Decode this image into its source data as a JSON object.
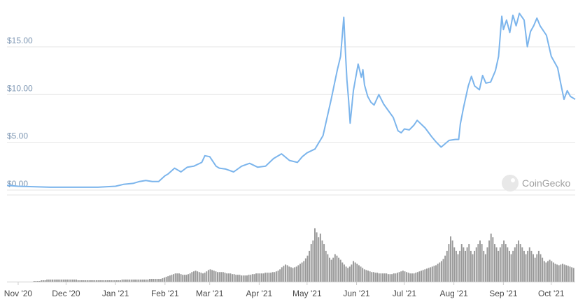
{
  "chart_data": {
    "type": "line",
    "watermark": "CoinGecko",
    "y_ticks": [
      0,
      5,
      10,
      15
    ],
    "y_tick_labels": [
      "$0.00",
      "$5.00",
      "$10.00",
      "$15.00"
    ],
    "x_tick_labels": [
      "Nov '20",
      "Dec '20",
      "Jan '21",
      "Feb '21",
      "Mar '21",
      "Apr '21",
      "May '21",
      "Jun '21",
      "Jul '21",
      "Aug '21",
      "Sep '21",
      "Oct '21"
    ],
    "x_tick_days": [
      0,
      30,
      61,
      92,
      120,
      151,
      181,
      212,
      242,
      273,
      304,
      334
    ],
    "price_ylim": [
      0,
      18.8
    ],
    "price_series": {
      "name": "Price",
      "color": "#7cb5ec",
      "days": [
        -7,
        0,
        20,
        30,
        50,
        61,
        66,
        72,
        76,
        80,
        84,
        88,
        92,
        94,
        96,
        98,
        102,
        106,
        110,
        115,
        117,
        120,
        124,
        126,
        130,
        135,
        140,
        145,
        150,
        155,
        160,
        165,
        170,
        175,
        178,
        181,
        186,
        191,
        196,
        200,
        202,
        204,
        205,
        206,
        207,
        208,
        210,
        213,
        215,
        216,
        217,
        219,
        221,
        223,
        226,
        229,
        232,
        235,
        238,
        240,
        242,
        245,
        248,
        250,
        255,
        259,
        262,
        265,
        270,
        274,
        276,
        277,
        279,
        282,
        284,
        286,
        289,
        291,
        293,
        296,
        299,
        301,
        303,
        304,
        306,
        308,
        310,
        312,
        314,
        317,
        319,
        321,
        323,
        325,
        327,
        331,
        334,
        338,
        340,
        342,
        344,
        346,
        349
      ],
      "values": [
        0.5,
        0.4,
        0.3,
        0.3,
        0.3,
        0.4,
        0.6,
        0.7,
        0.9,
        1.0,
        0.9,
        0.9,
        1.5,
        1.7,
        2.0,
        2.3,
        1.9,
        2.4,
        2.5,
        2.9,
        3.6,
        3.5,
        2.5,
        2.3,
        2.2,
        1.9,
        2.5,
        2.8,
        2.4,
        2.5,
        3.3,
        3.8,
        3.1,
        2.9,
        3.5,
        3.9,
        4.3,
        5.7,
        9.4,
        12.6,
        14.0,
        18.1,
        14.5,
        11.5,
        9.5,
        7.0,
        10.4,
        13.2,
        11.8,
        12.6,
        11.0,
        9.8,
        9.2,
        8.9,
        10.0,
        9.0,
        8.3,
        7.6,
        6.2,
        6.0,
        6.4,
        6.3,
        6.8,
        7.3,
        6.5,
        5.6,
        5.0,
        4.5,
        5.2,
        5.3,
        5.3,
        6.9,
        8.6,
        10.9,
        11.9,
        10.9,
        10.5,
        12.0,
        11.2,
        11.3,
        12.5,
        14.0,
        18.2,
        16.8,
        17.8,
        16.5,
        18.3,
        17.2,
        18.5,
        17.8,
        15.0,
        16.6,
        17.2,
        18.0,
        17.2,
        16.2,
        14.0,
        12.8,
        11.1,
        9.5,
        10.4,
        9.8,
        9.5
      ],
      "line_color": "#7cb5ec"
    },
    "volume_series": {
      "name": "Volume",
      "color": "#999999",
      "start_day": 10,
      "end_day": 348,
      "volume_ylim": [
        0,
        100
      ],
      "values": [
        1,
        1,
        1,
        1,
        2,
        2,
        2,
        3,
        3,
        3,
        3,
        3,
        3,
        3,
        3,
        3,
        3,
        3,
        3,
        3,
        3,
        3,
        3,
        3,
        2,
        2,
        2,
        2,
        2,
        2,
        2,
        2,
        2,
        2,
        2,
        2,
        2,
        2,
        2,
        2,
        2,
        2,
        2,
        2,
        2,
        2,
        2,
        2,
        3,
        3,
        3,
        3,
        3,
        3,
        3,
        3,
        3,
        3,
        3,
        3,
        3,
        3,
        3,
        4,
        4,
        4,
        4,
        4,
        4,
        4,
        5,
        6,
        7,
        8,
        9,
        10,
        11,
        12,
        12,
        12,
        11,
        10,
        10,
        10,
        11,
        12,
        14,
        15,
        16,
        15,
        14,
        13,
        12,
        13,
        15,
        17,
        18,
        17,
        16,
        15,
        14,
        14,
        14,
        14,
        13,
        12,
        12,
        12,
        11,
        11,
        10,
        10,
        10,
        9,
        9,
        9,
        9,
        10,
        10,
        11,
        11,
        12,
        12,
        12,
        12,
        12,
        13,
        13,
        13,
        13,
        14,
        14,
        15,
        16,
        18,
        21,
        23,
        25,
        24,
        22,
        21,
        20,
        21,
        22,
        24,
        26,
        28,
        30,
        34,
        38,
        45,
        55,
        60,
        78,
        72,
        65,
        70,
        60,
        55,
        45,
        40,
        35,
        32,
        35,
        40,
        38,
        35,
        32,
        28,
        25,
        22,
        20,
        22,
        25,
        30,
        28,
        26,
        24,
        22,
        20,
        18,
        17,
        16,
        15,
        14,
        14,
        13,
        13,
        12,
        12,
        12,
        12,
        12,
        11,
        11,
        11,
        12,
        12,
        13,
        14,
        15,
        16,
        15,
        14,
        13,
        12,
        12,
        12,
        13,
        14,
        15,
        16,
        17,
        18,
        19,
        20,
        21,
        22,
        23,
        24,
        26,
        28,
        30,
        33,
        38,
        45,
        55,
        66,
        60,
        50,
        45,
        40,
        45,
        55,
        50,
        45,
        50,
        55,
        45,
        40,
        45,
        50,
        55,
        60,
        55,
        45,
        40,
        50,
        60,
        70,
        65,
        55,
        50,
        45,
        50,
        55,
        60,
        55,
        50,
        45,
        40,
        45,
        50,
        55,
        60,
        55,
        50,
        45,
        40,
        45,
        50,
        45,
        40,
        35,
        40,
        45,
        40,
        35,
        30,
        28,
        30,
        32,
        30,
        28,
        26,
        25,
        24,
        25,
        26,
        25,
        24,
        23,
        22,
        21,
        20
      ]
    }
  }
}
